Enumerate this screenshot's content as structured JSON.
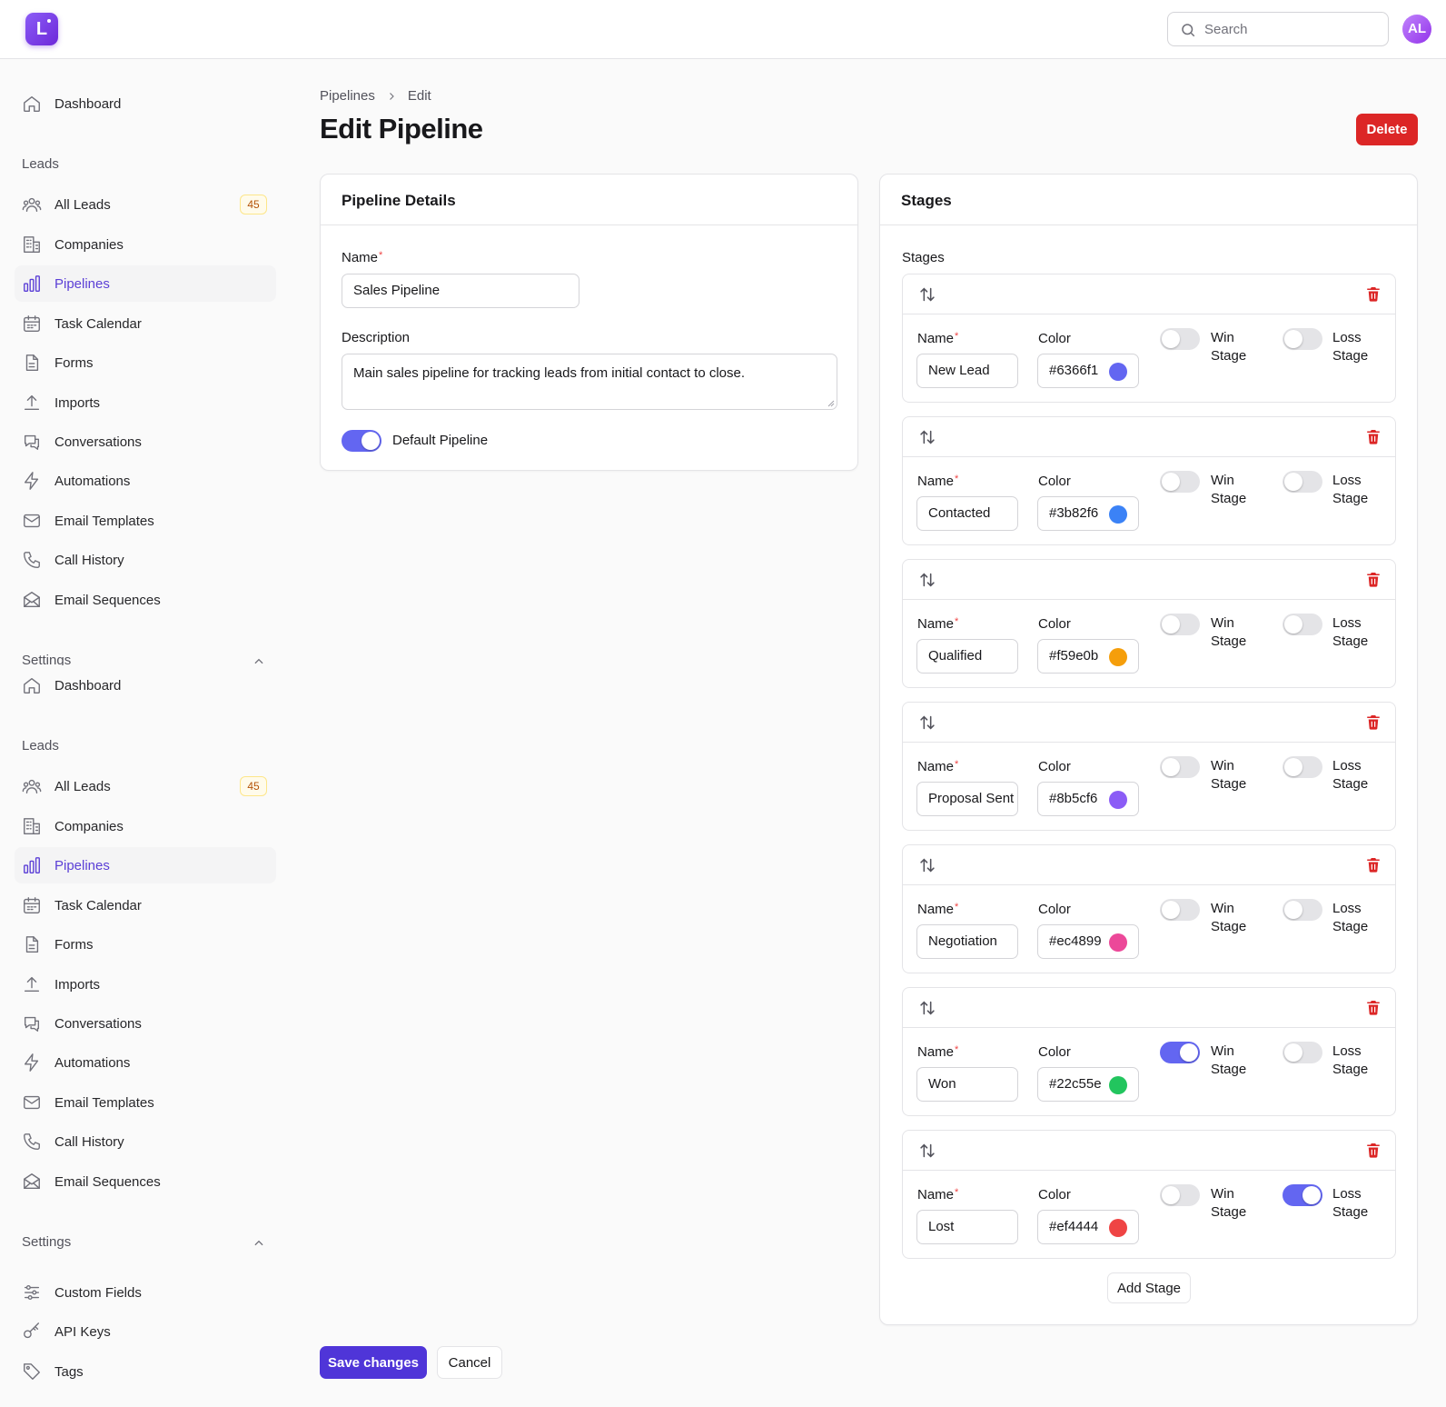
{
  "app": {
    "logo_letter": "L",
    "avatar_initials": "AL",
    "search_placeholder": "Search",
    "accent": "#6366f1"
  },
  "sidebar": {
    "nav_top": {
      "label": "Dashboard"
    },
    "leads_section": "Leads",
    "items": [
      {
        "label": "All Leads",
        "icon": "users-icon",
        "badge": "45"
      },
      {
        "label": "Companies",
        "icon": "building-icon"
      },
      {
        "label": "Pipelines",
        "icon": "bar-chart-icon",
        "active": true
      },
      {
        "label": "Task Calendar",
        "icon": "calendar-icon"
      },
      {
        "label": "Forms",
        "icon": "document-icon"
      },
      {
        "label": "Imports",
        "icon": "upload-icon"
      },
      {
        "label": "Conversations",
        "icon": "chat-icon"
      },
      {
        "label": "Automations",
        "icon": "lightning-icon"
      },
      {
        "label": "Email Templates",
        "icon": "mail-icon"
      },
      {
        "label": "Call History",
        "icon": "phone-icon"
      },
      {
        "label": "Email Sequences",
        "icon": "mail-open-icon"
      }
    ],
    "settings_section": "Settings",
    "settings_items": [
      {
        "label": "Custom Fields",
        "icon": "sliders-icon"
      },
      {
        "label": "API Keys",
        "icon": "key-icon"
      },
      {
        "label": "Tags",
        "icon": "tag-icon"
      }
    ]
  },
  "breadcrumb": {
    "parent": "Pipelines",
    "current": "Edit"
  },
  "page": {
    "title": "Edit Pipeline",
    "delete_label": "Delete"
  },
  "details": {
    "heading": "Pipeline Details",
    "name_label": "Name",
    "name_value": "Sales Pipeline",
    "description_label": "Description",
    "description_value": "Main sales pipeline for tracking leads from initial contact to close.",
    "default_label": "Default Pipeline",
    "default_on": true
  },
  "stages_card": {
    "heading": "Stages",
    "list_label": "Stages",
    "name_label": "Name",
    "color_label": "Color",
    "win_label_1": "Win",
    "win_label_2": "Stage",
    "loss_label_1": "Loss",
    "loss_label_2": "Stage",
    "stages": [
      {
        "name": "New Lead",
        "color": "#6366f1",
        "color_text": "#6366f1",
        "win": false,
        "loss": false
      },
      {
        "name": "Contacted",
        "color": "#3b82f6",
        "color_text": "#3b82f6",
        "win": false,
        "loss": false
      },
      {
        "name": "Qualified",
        "color": "#f59e0b",
        "color_text": "#f59e0b",
        "win": false,
        "loss": false
      },
      {
        "name": "Proposal Sent",
        "color": "#8b5cf6",
        "color_text": "#8b5cf6",
        "win": false,
        "loss": false
      },
      {
        "name": "Negotiation",
        "color": "#ec4899",
        "color_text": "#ec4899",
        "win": false,
        "loss": false
      },
      {
        "name": "Won",
        "color": "#22c55e",
        "color_text": "#22c55e",
        "win": true,
        "loss": false
      },
      {
        "name": "Lost",
        "color": "#ef4444",
        "color_text": "#ef4444",
        "win": false,
        "loss": true
      }
    ],
    "add_label": "Add Stage"
  },
  "footer": {
    "save_label": "Save changes",
    "cancel_label": "Cancel"
  }
}
